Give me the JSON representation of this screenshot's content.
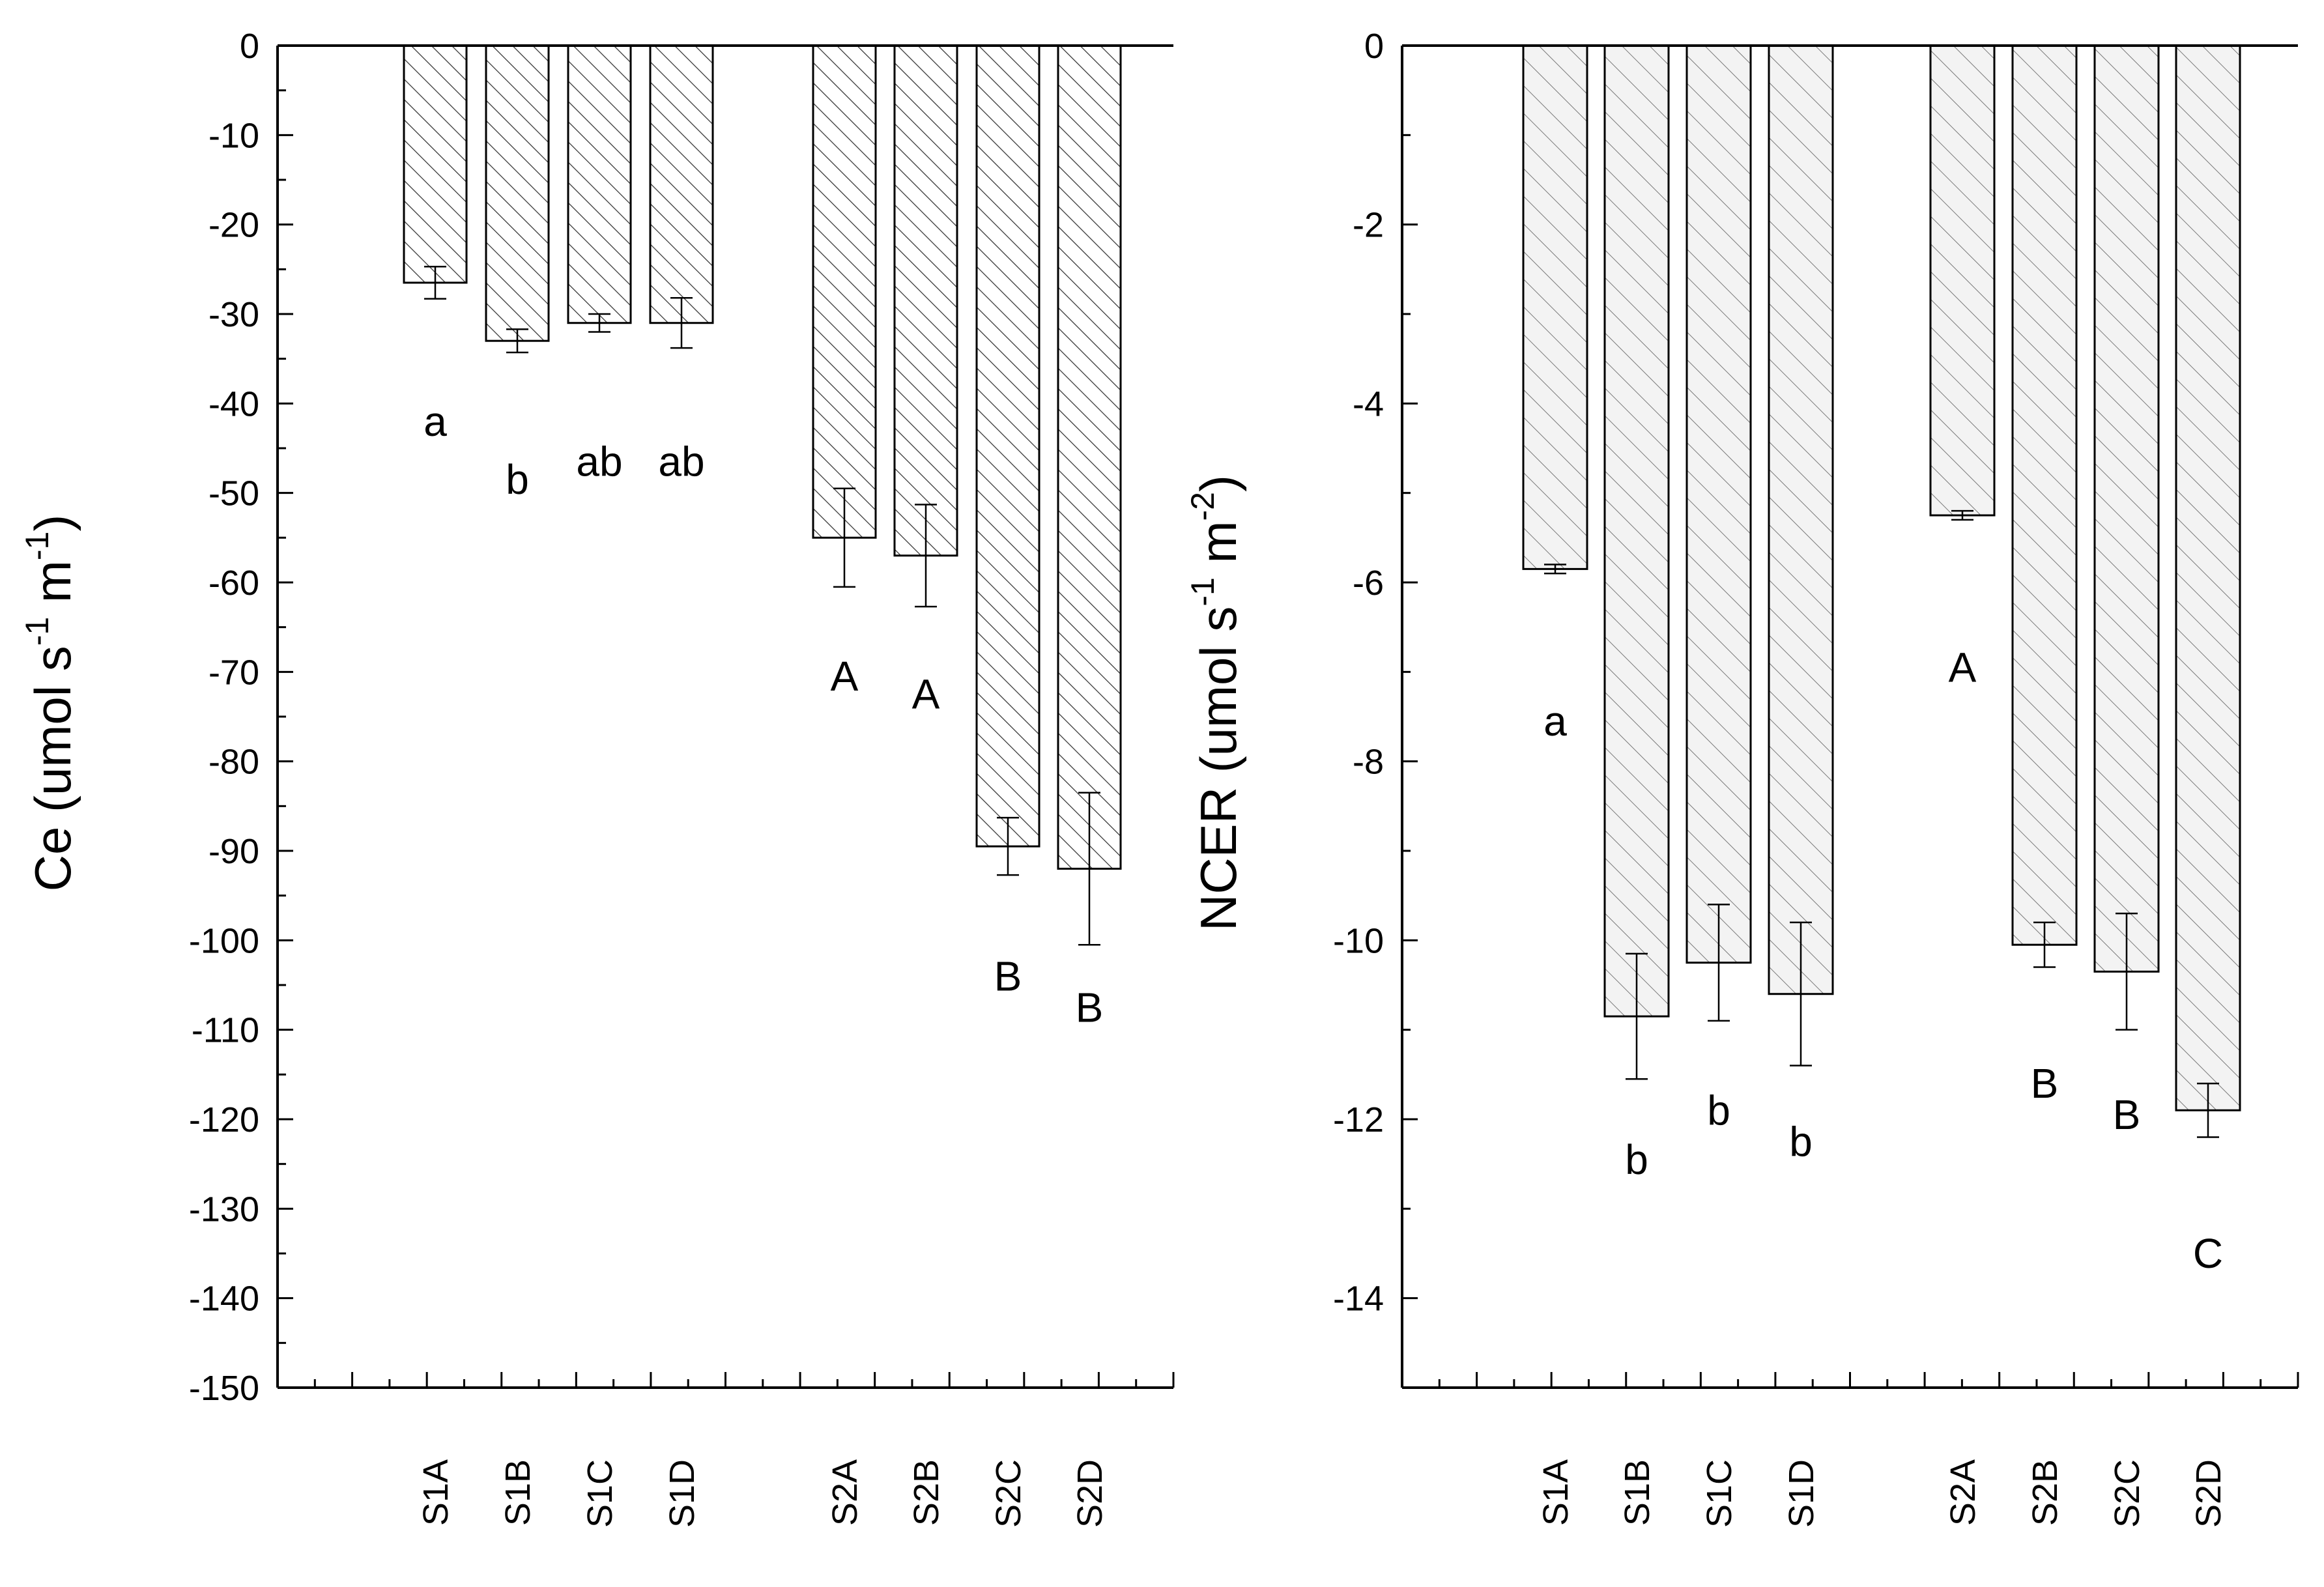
{
  "chart_data": [
    {
      "type": "bar",
      "ylabel": {
        "base": "Ce (umol s",
        "sup1": "-1",
        "mid": " m",
        "sup2": "-1",
        "end": ")"
      },
      "ylim": [
        -150,
        0
      ],
      "yticks": [
        0,
        -10,
        -20,
        -30,
        -40,
        -50,
        -60,
        -70,
        -80,
        -90,
        -100,
        -110,
        -120,
        -130,
        -140,
        -150
      ],
      "y_minor_step": 5,
      "categories": [
        "S1A",
        "S1B",
        "S1C",
        "S1D",
        "S2A",
        "S2B",
        "S2C",
        "S2D"
      ],
      "values": [
        -26.5,
        -33.0,
        -31.0,
        -31.0,
        -55.0,
        -57.0,
        -89.5,
        -92.0
      ],
      "errors": [
        1.8,
        1.3,
        1.0,
        2.8,
        5.5,
        5.7,
        3.2,
        8.5
      ],
      "significance_letters": [
        "a",
        "b",
        "ab",
        "ab",
        "A",
        "A",
        "B",
        "B"
      ],
      "significance_letter_y": [
        -42,
        -48.5,
        -46.5,
        -46.5,
        -70.5,
        -72.5,
        -104,
        -107.5
      ],
      "hatch": "dense"
    },
    {
      "type": "bar",
      "ylabel": {
        "base": "NCER (umol s",
        "sup1": "-1",
        "mid": " m",
        "sup2": "-2",
        "end": ")"
      },
      "ylim": [
        -15,
        0
      ],
      "yticks": [
        0,
        -2,
        -4,
        -6,
        -8,
        -10,
        -12,
        -14
      ],
      "y_minor_step": 1,
      "categories": [
        "S1A",
        "S1B",
        "S1C",
        "S1D",
        "S2A",
        "S2B",
        "S2C",
        "S2D"
      ],
      "values": [
        -5.85,
        -10.85,
        -10.25,
        -10.6,
        -5.25,
        -10.05,
        -10.35,
        -11.9
      ],
      "errors": [
        0.05,
        0.7,
        0.65,
        0.8,
        0.05,
        0.25,
        0.65,
        0.3
      ],
      "significance_letters": [
        "a",
        "b",
        "b",
        "b",
        "A",
        "B",
        "B",
        "C"
      ],
      "significance_letter_y": [
        -7.55,
        -12.45,
        -11.9,
        -12.25,
        -6.95,
        -11.6,
        -11.95,
        -13.5
      ],
      "hatch": "light"
    }
  ]
}
